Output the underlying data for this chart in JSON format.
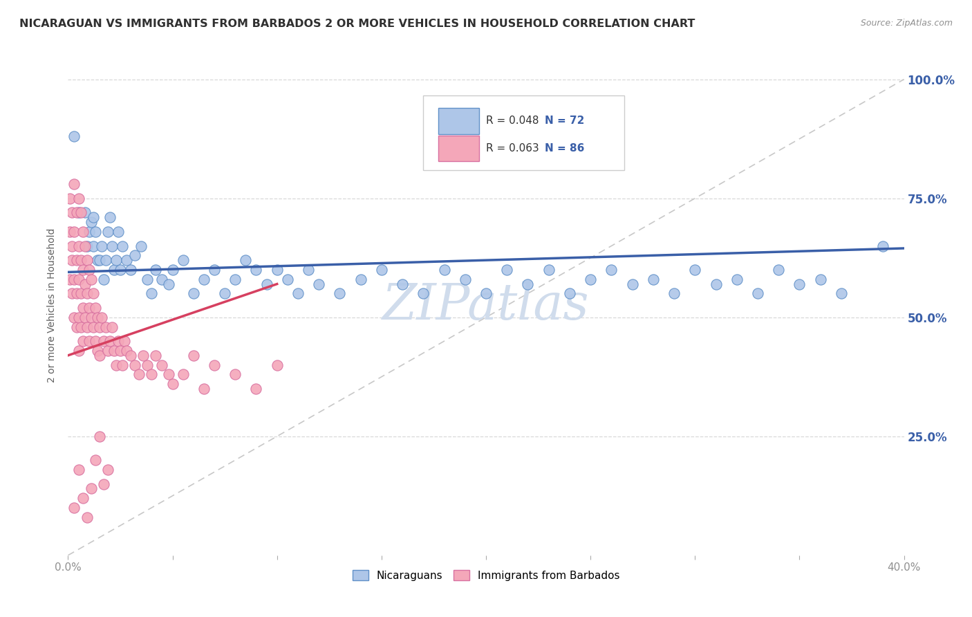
{
  "title": "NICARAGUAN VS IMMIGRANTS FROM BARBADOS 2 OR MORE VEHICLES IN HOUSEHOLD CORRELATION CHART",
  "source_text": "Source: ZipAtlas.com",
  "ylabel": "2 or more Vehicles in Household",
  "legend_blue_label": "Nicaraguans",
  "legend_pink_label": "Immigrants from Barbados",
  "legend_blue_R": "R = 0.048",
  "legend_blue_N": "N = 72",
  "legend_pink_R": "R = 0.063",
  "legend_pink_N": "N = 86",
  "blue_scatter_color": "#aec6e8",
  "pink_scatter_color": "#f4a7b9",
  "blue_line_color": "#3a5fa8",
  "pink_line_color": "#d64060",
  "diagonal_line_color": "#c8c8c8",
  "blue_dot_edge": "#6090c8",
  "pink_dot_edge": "#d870a0",
  "blue_scatter_x": [
    0.003,
    0.005,
    0.008,
    0.009,
    0.01,
    0.011,
    0.012,
    0.012,
    0.013,
    0.014,
    0.015,
    0.016,
    0.017,
    0.018,
    0.019,
    0.02,
    0.021,
    0.022,
    0.023,
    0.024,
    0.025,
    0.026,
    0.028,
    0.03,
    0.032,
    0.035,
    0.038,
    0.04,
    0.042,
    0.045,
    0.048,
    0.05,
    0.055,
    0.06,
    0.065,
    0.07,
    0.075,
    0.08,
    0.085,
    0.09,
    0.095,
    0.1,
    0.105,
    0.11,
    0.115,
    0.12,
    0.13,
    0.14,
    0.15,
    0.16,
    0.17,
    0.18,
    0.19,
    0.2,
    0.21,
    0.22,
    0.23,
    0.24,
    0.25,
    0.26,
    0.27,
    0.28,
    0.29,
    0.3,
    0.31,
    0.32,
    0.33,
    0.34,
    0.35,
    0.36,
    0.37,
    0.39
  ],
  "blue_scatter_y": [
    0.88,
    0.72,
    0.72,
    0.65,
    0.68,
    0.7,
    0.71,
    0.65,
    0.68,
    0.62,
    0.62,
    0.65,
    0.58,
    0.62,
    0.68,
    0.71,
    0.65,
    0.6,
    0.62,
    0.68,
    0.6,
    0.65,
    0.62,
    0.6,
    0.63,
    0.65,
    0.58,
    0.55,
    0.6,
    0.58,
    0.57,
    0.6,
    0.62,
    0.55,
    0.58,
    0.6,
    0.55,
    0.58,
    0.62,
    0.6,
    0.57,
    0.6,
    0.58,
    0.55,
    0.6,
    0.57,
    0.55,
    0.58,
    0.6,
    0.57,
    0.55,
    0.6,
    0.58,
    0.55,
    0.6,
    0.57,
    0.6,
    0.55,
    0.58,
    0.6,
    0.57,
    0.58,
    0.55,
    0.6,
    0.57,
    0.58,
    0.55,
    0.6,
    0.57,
    0.58,
    0.55,
    0.65
  ],
  "pink_scatter_x": [
    0.001,
    0.001,
    0.001,
    0.002,
    0.002,
    0.002,
    0.002,
    0.003,
    0.003,
    0.003,
    0.003,
    0.004,
    0.004,
    0.004,
    0.004,
    0.005,
    0.005,
    0.005,
    0.005,
    0.005,
    0.006,
    0.006,
    0.006,
    0.006,
    0.007,
    0.007,
    0.007,
    0.007,
    0.008,
    0.008,
    0.008,
    0.009,
    0.009,
    0.009,
    0.01,
    0.01,
    0.01,
    0.011,
    0.011,
    0.012,
    0.012,
    0.013,
    0.013,
    0.014,
    0.014,
    0.015,
    0.015,
    0.016,
    0.017,
    0.018,
    0.019,
    0.02,
    0.021,
    0.022,
    0.023,
    0.024,
    0.025,
    0.026,
    0.027,
    0.028,
    0.03,
    0.032,
    0.034,
    0.036,
    0.038,
    0.04,
    0.042,
    0.045,
    0.048,
    0.05,
    0.055,
    0.06,
    0.065,
    0.07,
    0.08,
    0.09,
    0.1,
    0.003,
    0.005,
    0.007,
    0.009,
    0.011,
    0.013,
    0.015,
    0.017,
    0.019
  ],
  "pink_scatter_y": [
    0.68,
    0.58,
    0.75,
    0.65,
    0.55,
    0.72,
    0.62,
    0.78,
    0.68,
    0.58,
    0.5,
    0.72,
    0.62,
    0.55,
    0.48,
    0.75,
    0.65,
    0.58,
    0.5,
    0.43,
    0.72,
    0.62,
    0.55,
    0.48,
    0.68,
    0.6,
    0.52,
    0.45,
    0.65,
    0.57,
    0.5,
    0.62,
    0.55,
    0.48,
    0.6,
    0.52,
    0.45,
    0.58,
    0.5,
    0.55,
    0.48,
    0.52,
    0.45,
    0.5,
    0.43,
    0.48,
    0.42,
    0.5,
    0.45,
    0.48,
    0.43,
    0.45,
    0.48,
    0.43,
    0.4,
    0.45,
    0.43,
    0.4,
    0.45,
    0.43,
    0.42,
    0.4,
    0.38,
    0.42,
    0.4,
    0.38,
    0.42,
    0.4,
    0.38,
    0.36,
    0.38,
    0.42,
    0.35,
    0.4,
    0.38,
    0.35,
    0.4,
    0.1,
    0.18,
    0.12,
    0.08,
    0.14,
    0.2,
    0.25,
    0.15,
    0.18
  ],
  "xlim": [
    0.0,
    0.4
  ],
  "ylim": [
    0.0,
    1.05
  ],
  "x_ticks": [
    0.0,
    0.05,
    0.1,
    0.15,
    0.2,
    0.25,
    0.3,
    0.35,
    0.4
  ],
  "x_tick_labels_show": [
    "0.0%",
    "",
    "",
    "",
    "",
    "",
    "",
    "",
    "40.0%"
  ],
  "y_ticks": [
    0.25,
    0.5,
    0.75,
    1.0
  ],
  "y_tick_labels_right": [
    "25.0%",
    "50.0%",
    "75.0%",
    "100.0%"
  ],
  "figsize": [
    14.06,
    8.92
  ],
  "dpi": 100,
  "background_color": "#ffffff",
  "title_color": "#303030",
  "source_color": "#909090",
  "axis_label_color": "#606060",
  "tick_color": "#909090",
  "grid_color": "#d8d8d8",
  "watermark_text": "ZIPatlas",
  "watermark_color": "#d0dcec"
}
